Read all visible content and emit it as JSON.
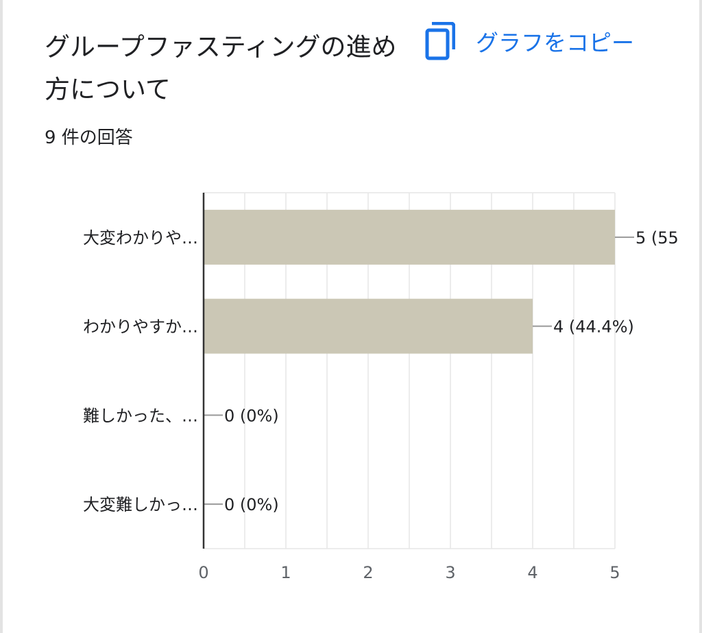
{
  "card": {
    "title": "グループファスティングの進め方について",
    "response_count": "9 件の回答",
    "copy_label": "グラフをコピー",
    "copy_icon": "copy-icon",
    "accent_color": "#1a73e8"
  },
  "chart_data": {
    "type": "bar",
    "orientation": "horizontal",
    "categories": [
      "大変わかりや…",
      "わかりやすか…",
      "難しかった、…",
      "大変難しかっ…"
    ],
    "values": [
      5,
      4,
      0,
      0
    ],
    "value_labels": [
      "5 (55",
      "4 (44.4%)",
      "0 (0%)",
      "0 (0%)"
    ],
    "xlim": [
      0,
      5
    ],
    "xticks": [
      "0",
      "1",
      "2",
      "3",
      "4",
      "5"
    ],
    "grid": true,
    "bar_color": "#cbc7b5"
  }
}
